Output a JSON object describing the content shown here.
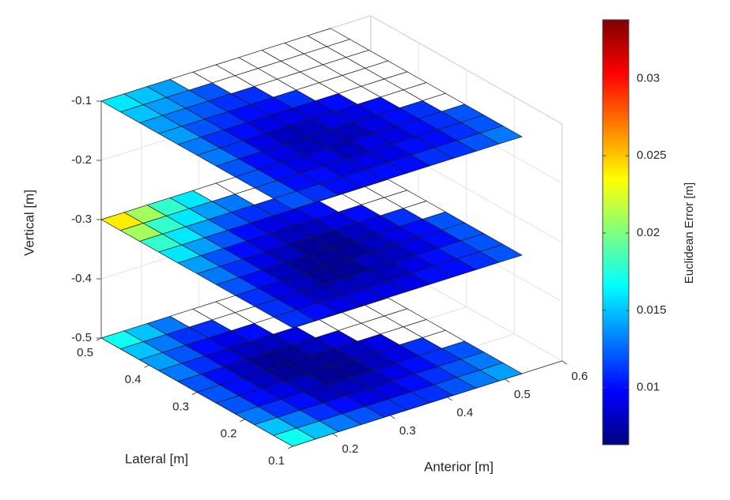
{
  "chart_data": {
    "type": "surface3d",
    "colormap": "jet",
    "xlabel": "Anterior [m]",
    "ylabel": "Lateral [m]",
    "zlabel": "Vertical [m]",
    "colorbar_label": "Euclidean Error [m]",
    "xlim": [
      0.13,
      0.6
    ],
    "ylim": [
      0.1,
      0.5
    ],
    "zlim": [
      -0.5,
      -0.1
    ],
    "xticks": [
      0.2,
      0.3,
      0.4,
      0.5,
      0.6
    ],
    "yticks": [
      0.1,
      0.2,
      0.3,
      0.4,
      0.5
    ],
    "zticks": [
      -0.5,
      -0.4,
      -0.3,
      -0.2,
      -0.1
    ],
    "clim": [
      0.0063,
      0.0338
    ],
    "cticks": [
      0.01,
      0.015,
      0.02,
      0.025,
      0.03
    ],
    "grid": true,
    "x": [
      0.13,
      0.17,
      0.21,
      0.25,
      0.29,
      0.33,
      0.37,
      0.41,
      0.45,
      0.49,
      0.53
    ],
    "y": [
      0.1,
      0.14,
      0.18,
      0.22,
      0.26,
      0.3,
      0.34,
      0.38,
      0.42,
      0.46,
      0.5
    ],
    "layers": [
      {
        "z": -0.5,
        "values": [
          [
            0.017,
            0.015,
            0.013,
            0.012,
            0.011,
            0.011,
            0.011,
            0.012,
            0.013,
            0.014
          ],
          [
            0.015,
            0.013,
            0.011,
            0.01,
            0.009,
            0.009,
            0.01,
            0.011,
            0.012,
            0.013
          ],
          [
            0.013,
            0.011,
            0.01,
            0.008,
            0.008,
            0.008,
            0.009,
            0.01,
            0.011,
            0.012
          ],
          [
            0.012,
            0.01,
            0.009,
            0.008,
            0.007,
            0.007,
            0.008,
            0.009,
            0.011,
            null
          ],
          [
            0.012,
            0.01,
            0.008,
            0.007,
            0.007,
            0.007,
            0.008,
            0.009,
            null,
            null
          ],
          [
            0.012,
            0.01,
            0.008,
            0.007,
            0.007,
            0.008,
            0.009,
            null,
            null,
            null
          ],
          [
            0.013,
            0.011,
            0.009,
            0.008,
            0.008,
            0.009,
            null,
            null,
            null,
            null
          ],
          [
            0.014,
            0.012,
            0.01,
            0.009,
            0.01,
            null,
            null,
            null,
            null,
            null
          ],
          [
            0.015,
            0.013,
            0.011,
            0.011,
            null,
            null,
            null,
            null,
            null,
            null
          ],
          [
            0.017,
            0.015,
            0.013,
            null,
            null,
            null,
            null,
            null,
            null,
            null
          ]
        ]
      },
      {
        "z": -0.3,
        "values": [
          [
            0.011,
            0.01,
            0.009,
            0.009,
            0.009,
            0.009,
            0.01,
            0.01,
            0.011,
            0.012
          ],
          [
            0.011,
            0.009,
            0.008,
            0.008,
            0.008,
            0.008,
            0.009,
            0.01,
            0.011,
            0.012
          ],
          [
            0.011,
            0.009,
            0.008,
            0.007,
            0.007,
            0.008,
            0.008,
            0.009,
            0.01,
            0.012
          ],
          [
            0.012,
            0.01,
            0.008,
            0.007,
            0.007,
            0.007,
            0.008,
            0.009,
            0.01,
            0.012
          ],
          [
            0.013,
            0.011,
            0.009,
            0.008,
            0.007,
            0.007,
            0.008,
            0.009,
            0.011,
            null
          ],
          [
            0.014,
            0.012,
            0.01,
            0.009,
            0.008,
            0.008,
            0.009,
            0.01,
            null,
            null
          ],
          [
            0.016,
            0.014,
            0.012,
            0.01,
            0.009,
            0.009,
            0.01,
            null,
            null,
            null
          ],
          [
            0.018,
            0.016,
            0.014,
            0.012,
            0.011,
            0.011,
            null,
            null,
            null,
            null
          ],
          [
            0.021,
            0.018,
            0.016,
            0.014,
            0.013,
            null,
            null,
            null,
            null,
            null
          ],
          [
            0.024,
            0.021,
            0.018,
            0.016,
            null,
            null,
            null,
            null,
            null,
            null
          ]
        ]
      },
      {
        "z": -0.1,
        "values": [
          [
            0.012,
            0.011,
            0.01,
            0.01,
            0.01,
            0.01,
            0.011,
            0.011,
            0.012,
            0.013
          ],
          [
            0.012,
            0.01,
            0.01,
            0.009,
            0.009,
            0.009,
            0.01,
            0.01,
            0.011,
            0.012
          ],
          [
            0.012,
            0.01,
            0.009,
            0.009,
            0.008,
            0.009,
            0.009,
            0.01,
            0.011,
            0.012
          ],
          [
            0.012,
            0.01,
            0.009,
            0.008,
            0.008,
            0.008,
            0.009,
            0.01,
            0.011,
            null
          ],
          [
            0.013,
            0.011,
            0.009,
            0.008,
            0.008,
            0.009,
            0.009,
            0.01,
            null,
            null
          ],
          [
            0.013,
            0.011,
            0.01,
            0.009,
            0.009,
            0.009,
            0.01,
            null,
            null,
            null
          ],
          [
            0.014,
            0.012,
            0.011,
            0.01,
            0.01,
            0.011,
            null,
            null,
            null,
            null
          ],
          [
            0.014,
            0.013,
            0.012,
            0.011,
            0.011,
            null,
            null,
            null,
            null,
            null
          ],
          [
            0.015,
            0.014,
            0.013,
            0.012,
            null,
            null,
            null,
            null,
            null,
            null
          ],
          [
            0.016,
            0.015,
            0.014,
            null,
            null,
            null,
            null,
            null,
            null,
            null
          ]
        ]
      }
    ]
  }
}
